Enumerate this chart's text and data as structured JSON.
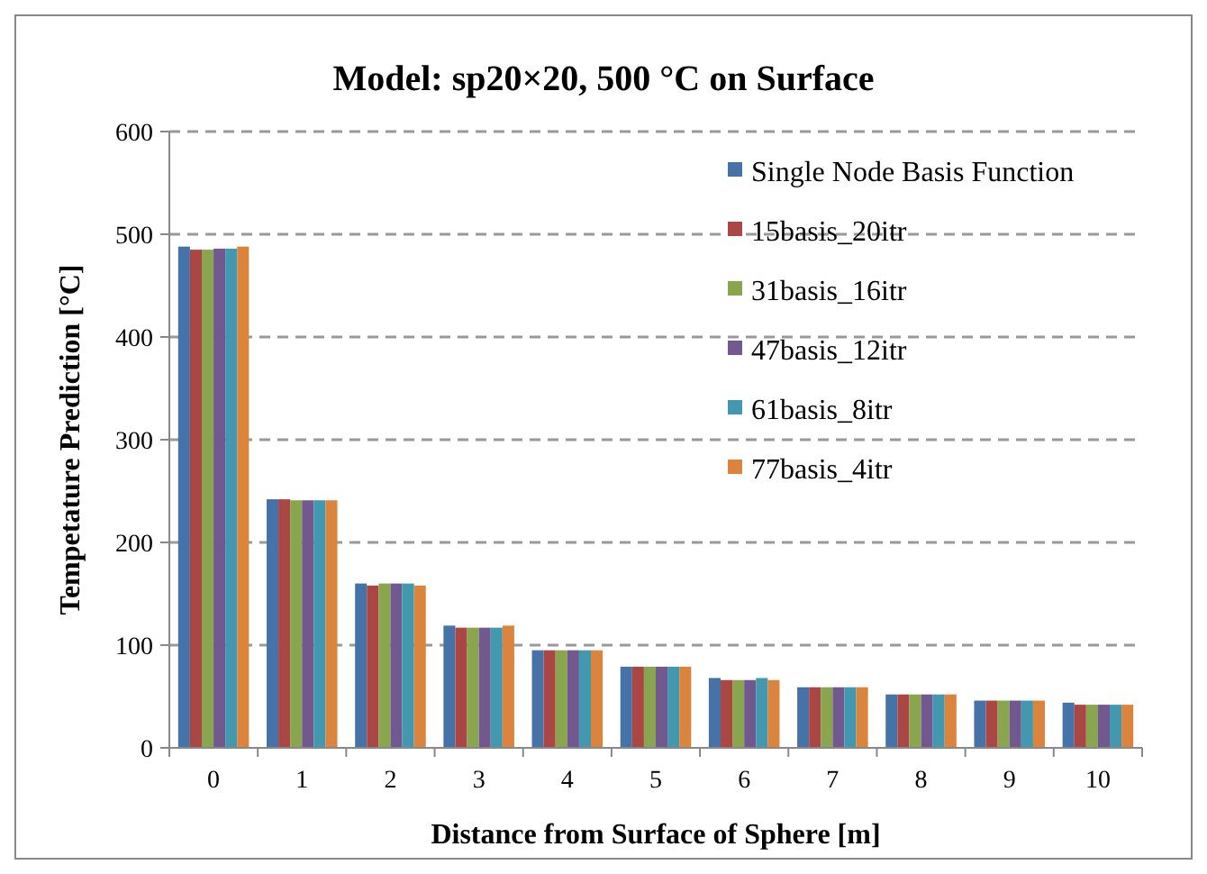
{
  "chart_data": {
    "type": "bar",
    "title": "Model: sp20×20, 500 °C on Surface",
    "xlabel": "Distance from Surface of Sphere [m]",
    "ylabel": "Tempetature Prediction [°C]",
    "categories": [
      "0",
      "1",
      "2",
      "3",
      "4",
      "5",
      "6",
      "7",
      "8",
      "9",
      "10"
    ],
    "series": [
      {
        "name": "Single Node Basis Function",
        "color": "#4572a7",
        "values": [
          488,
          242,
          160,
          119,
          95,
          79,
          68,
          59,
          52,
          46,
          44
        ]
      },
      {
        "name": "15basis_20itr",
        "color": "#aa4643",
        "values": [
          485,
          242,
          158,
          117,
          95,
          79,
          66,
          59,
          52,
          46,
          42
        ]
      },
      {
        "name": "31basis_16itr",
        "color": "#89a54e",
        "values": [
          485,
          241,
          160,
          117,
          95,
          79,
          66,
          59,
          52,
          46,
          42
        ]
      },
      {
        "name": "47basis_12itr",
        "color": "#71588f",
        "values": [
          486,
          241,
          160,
          117,
          95,
          79,
          66,
          59,
          52,
          46,
          42
        ]
      },
      {
        "name": "61basis_8itr",
        "color": "#4198af",
        "values": [
          486,
          241,
          160,
          117,
          95,
          79,
          68,
          59,
          52,
          46,
          42
        ]
      },
      {
        "name": "77basis_4itr",
        "color": "#db843d",
        "values": [
          488,
          241,
          158,
          119,
          95,
          79,
          66,
          59,
          52,
          46,
          42
        ]
      }
    ],
    "ylim": [
      0,
      600
    ],
    "yticks": [
      0,
      100,
      200,
      300,
      400,
      500,
      600
    ],
    "grid": "y",
    "legend": "top right"
  }
}
